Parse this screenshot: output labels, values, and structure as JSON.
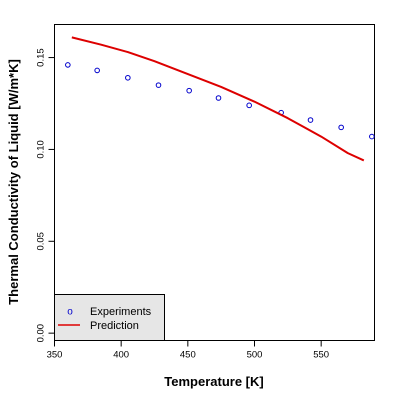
{
  "chart_data": {
    "type": "scatter",
    "title": "",
    "xlabel": "Temperature [K]",
    "ylabel": "Thermal Conductivity of Liquid [W/m*K]",
    "xlim": [
      350,
      590
    ],
    "ylim": [
      -0.004,
      0.168
    ],
    "grid": false,
    "legend_position": "bottom-left",
    "x_ticks": [
      350,
      400,
      450,
      500,
      550
    ],
    "y_ticks": [
      0.0,
      0.05,
      0.1,
      0.15
    ],
    "x_tick_labels": [
      "350",
      "400",
      "450",
      "500",
      "550"
    ],
    "y_tick_labels": [
      "0.00",
      "0.05",
      "0.10",
      "0.15"
    ],
    "legend": {
      "experiments_symbol": "o",
      "experiments_label": "Experiments",
      "prediction_label": "Prediction"
    },
    "series": [
      {
        "name": "Experiments",
        "kind": "points",
        "color": "#0000cc",
        "x": [
          360,
          382,
          405,
          428,
          451,
          473,
          496,
          520,
          542,
          565,
          588
        ],
        "y": [
          0.146,
          0.143,
          0.139,
          0.135,
          0.132,
          0.128,
          0.124,
          0.12,
          0.116,
          0.112,
          0.107
        ]
      },
      {
        "name": "Prediction",
        "kind": "line",
        "color": "#dd0000",
        "x": [
          363,
          385,
          405,
          425,
          450,
          475,
          500,
          525,
          550,
          570,
          582
        ],
        "y": [
          0.161,
          0.157,
          0.153,
          0.148,
          0.141,
          0.134,
          0.126,
          0.117,
          0.107,
          0.098,
          0.094
        ]
      }
    ]
  }
}
